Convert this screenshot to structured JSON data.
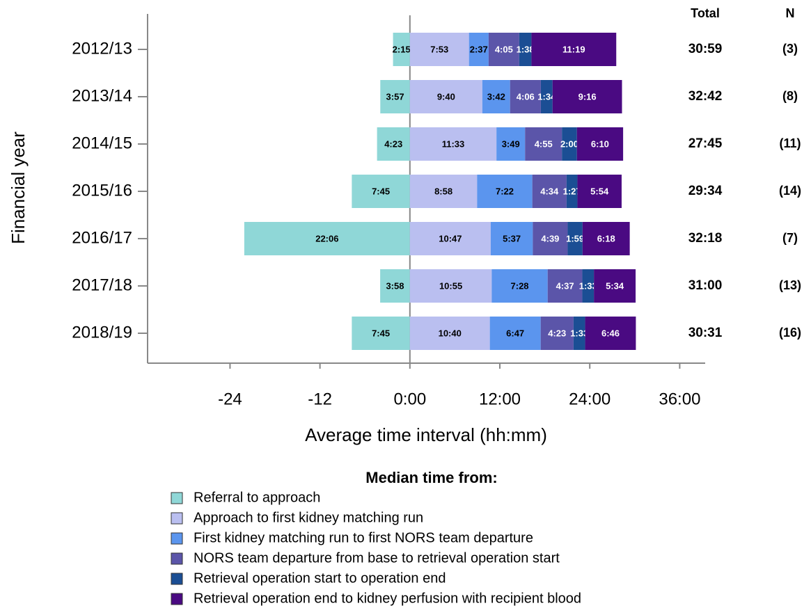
{
  "chart_data": {
    "type": "stacked_bar_horizontal",
    "y_label": "Financial year",
    "x_label": "Average time interval (hh:mm)",
    "categories": [
      "2012/13",
      "2013/14",
      "2014/15",
      "2015/16",
      "2016/17",
      "2017/18",
      "2018/19"
    ],
    "xlim": [
      -35,
      39.4
    ],
    "xticks": [
      -24,
      -12,
      {
        "value": 0,
        "label": "0:00"
      },
      {
        "value": 12,
        "label": "12:00"
      },
      {
        "value": 24,
        "label": "24:00"
      },
      {
        "value": 36,
        "label": "36:00"
      }
    ],
    "legend_title": "Median time from:",
    "series": [
      {
        "name": "Referral to approach",
        "color": "#8fd7d7",
        "values": [
          -2.25,
          -3.95,
          -4.3833,
          -7.75,
          -22.1,
          -3.9667,
          -7.75
        ],
        "value_labels": [
          "2:15",
          "3:57",
          "4:23",
          "7:45",
          "22:06",
          "3:58",
          "7:45"
        ]
      },
      {
        "name": "Approach to first kidney matching run",
        "color": "#babff0",
        "values": [
          7.8833,
          9.6667,
          11.55,
          8.9667,
          10.7833,
          10.9167,
          10.6667
        ],
        "value_labels": [
          "7:53",
          "9:40",
          "11:33",
          "8:58",
          "10:47",
          "10:55",
          "10:40"
        ]
      },
      {
        "name": "First kidney matching run to first NORS team departure",
        "color": "#5b95ee",
        "values": [
          2.6167,
          3.7,
          3.8167,
          7.3667,
          5.6167,
          7.4667,
          6.7833
        ],
        "value_labels": [
          "2:37",
          "3:42",
          "3:49",
          "7:22",
          "5:37",
          "7:28",
          "6:47"
        ]
      },
      {
        "name": "NORS team departure from base to retrieval operation start",
        "color": "#5b55a9",
        "values": [
          4.0833,
          4.1,
          4.9167,
          4.5667,
          4.65,
          4.6167,
          4.3833
        ],
        "value_labels": [
          "4:05",
          "4:06",
          "4:55",
          "4:34",
          "4:39",
          "4:37",
          "4:23"
        ]
      },
      {
        "name": "Retrieval operation start to operation end",
        "color": "#1b4e94",
        "values": [
          1.6333,
          1.5667,
          2,
          1.45,
          1.9833,
          1.55,
          1.55
        ],
        "value_labels": [
          "1:38",
          "1:34",
          "2:00",
          "1:27",
          "1:59",
          "1:33",
          "1:33"
        ]
      },
      {
        "name": "Retrieval operation end to kidney perfusion with recipient blood",
        "color": "#4a0a82",
        "values": [
          11.3167,
          9.2667,
          6.1667,
          5.9,
          6.3,
          5.5667,
          6.7667
        ],
        "value_labels": [
          "11:19",
          "9:16",
          "6:10",
          "5:54",
          "6:18",
          "5:34",
          "6:46"
        ]
      }
    ],
    "totals": {
      "title": "Total",
      "values": [
        30.9833,
        32.7,
        27.75,
        29.5667,
        32.3,
        31,
        30.5167
      ],
      "value_labels": [
        "30:59",
        "32:42",
        "27:45",
        "29:34",
        "32:18",
        "31:00",
        "30:31"
      ]
    },
    "n": {
      "title": "N",
      "values": [
        3,
        8,
        11,
        14,
        7,
        13,
        16
      ],
      "value_labels": [
        "(3)",
        "(8)",
        "(11)",
        "(14)",
        "(7)",
        "(13)",
        "(16)"
      ]
    }
  }
}
